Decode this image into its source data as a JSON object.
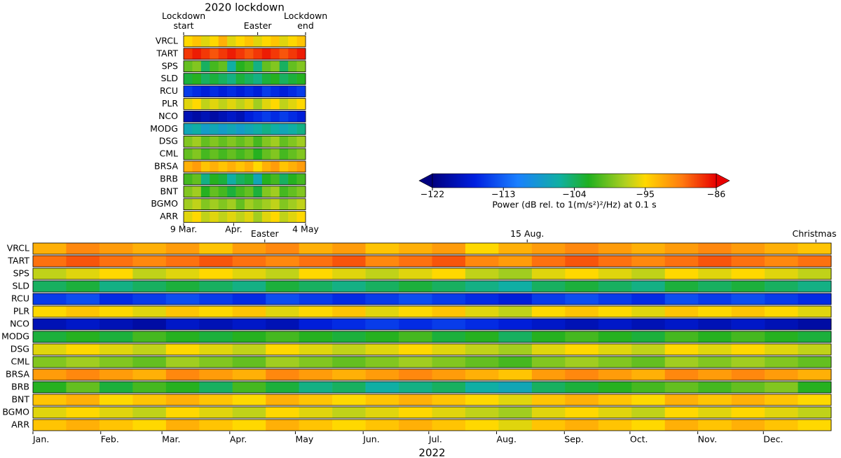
{
  "chart_data": [
    {
      "type": "heatmap",
      "title": "2020 lockdown",
      "rows": [
        "VRCL",
        "TART",
        "SPS",
        "SLD",
        "RCU",
        "PLR",
        "NCO",
        "MODG",
        "DSG",
        "CML",
        "BRSA",
        "BRB",
        "BNT",
        "BGMO",
        "ARR"
      ],
      "values": [
        [
          -95,
          -94,
          -96,
          -95,
          -93,
          -96,
          -95,
          -94,
          -96,
          -95,
          -94,
          -96,
          -95,
          -94
        ],
        [
          -88,
          -87,
          -88,
          -89,
          -88,
          -87,
          -88,
          -89,
          -88,
          -87,
          -88,
          -89,
          -88,
          -87
        ],
        [
          -100,
          -99,
          -104,
          -101,
          -100,
          -106,
          -102,
          -101,
          -105,
          -100,
          -99,
          -104,
          -100,
          -99
        ],
        [
          -103,
          -102,
          -104,
          -103,
          -104,
          -105,
          -103,
          -104,
          -105,
          -103,
          -102,
          -104,
          -103,
          -102
        ],
        [
          -115,
          -116,
          -117,
          -116,
          -117,
          -116,
          -117,
          -116,
          -117,
          -115,
          -116,
          -117,
          -116,
          -115
        ],
        [
          -96,
          -95,
          -97,
          -96,
          -97,
          -96,
          -97,
          -96,
          -98,
          -96,
          -95,
          -97,
          -96,
          -95
        ],
        [
          -119,
          -120,
          -119,
          -120,
          -119,
          -118,
          -119,
          -117,
          -116,
          -115,
          -116,
          -115,
          -116,
          -117
        ],
        [
          -107,
          -106,
          -108,
          -107,
          -108,
          -107,
          -108,
          -107,
          -106,
          -105,
          -106,
          -107,
          -106,
          -105
        ],
        [
          -99,
          -98,
          -100,
          -99,
          -100,
          -99,
          -100,
          -99,
          -101,
          -99,
          -98,
          -100,
          -99,
          -98
        ],
        [
          -100,
          -99,
          -101,
          -100,
          -101,
          -100,
          -101,
          -100,
          -102,
          -100,
          -99,
          -101,
          -100,
          -99
        ],
        [
          -93,
          -92,
          -94,
          -93,
          -94,
          -93,
          -94,
          -93,
          -95,
          -93,
          -92,
          -94,
          -93,
          -92
        ],
        [
          -101,
          -100,
          -105,
          -102,
          -103,
          -106,
          -104,
          -103,
          -107,
          -102,
          -101,
          -104,
          -102,
          -101
        ],
        [
          -99,
          -98,
          -102,
          -100,
          -101,
          -103,
          -101,
          -100,
          -103,
          -99,
          -98,
          -101,
          -100,
          -99
        ],
        [
          -98,
          -97,
          -99,
          -98,
          -99,
          -98,
          -100,
          -98,
          -99,
          -98,
          -97,
          -99,
          -98,
          -97
        ],
        [
          -96,
          -95,
          -97,
          -96,
          -97,
          -96,
          -97,
          -96,
          -98,
          -96,
          -95,
          -97,
          -96,
          -95
        ]
      ],
      "xlim": [
        69,
        125
      ],
      "xticks": [
        {
          "value": 69,
          "label": "9 Mar."
        },
        {
          "value": 92,
          "label": "Apr."
        },
        {
          "value": 125,
          "label": "4 May"
        }
      ],
      "annotations": [
        {
          "x": 69,
          "label": "Lockdown start"
        },
        {
          "x": 103,
          "label": "Easter"
        },
        {
          "x": 125,
          "label": "Lockdown end"
        }
      ],
      "colormap": "jet"
    },
    {
      "type": "heatmap",
      "xlabel": "2022",
      "rows": [
        "VRCL",
        "TART",
        "SPS",
        "SLD",
        "RCU",
        "PLR",
        "NCO",
        "MODG",
        "DSG",
        "CML",
        "BRSA",
        "BRB",
        "BNT",
        "BGMO",
        "ARR"
      ],
      "values": [
        [
          -93,
          -91,
          -92,
          -93,
          -92,
          -94,
          -92,
          -91,
          -93,
          -92,
          -94,
          -93,
          -92,
          -95,
          -93,
          -92,
          -91,
          -92,
          -93,
          -92,
          -91,
          -92,
          -93,
          -94
        ],
        [
          -90,
          -89,
          -90,
          -91,
          -90,
          -89,
          -90,
          -91,
          -90,
          -89,
          -91,
          -90,
          -89,
          -91,
          -92,
          -90,
          -89,
          -90,
          -91,
          -90,
          -89,
          -90,
          -91,
          -90
        ],
        [
          -97,
          -96,
          -95,
          -97,
          -96,
          -95,
          -96,
          -97,
          -95,
          -96,
          -97,
          -96,
          -95,
          -97,
          -98,
          -96,
          -95,
          -96,
          -97,
          -95,
          -96,
          -95,
          -96,
          -97
        ],
        [
          -104,
          -103,
          -105,
          -104,
          -103,
          -104,
          -105,
          -103,
          -104,
          -105,
          -104,
          -103,
          -104,
          -105,
          -106,
          -104,
          -103,
          -104,
          -105,
          -103,
          -104,
          -103,
          -104,
          -105
        ],
        [
          -115,
          -114,
          -116,
          -115,
          -114,
          -115,
          -116,
          -114,
          -115,
          -116,
          -115,
          -114,
          -115,
          -116,
          -117,
          -115,
          -114,
          -115,
          -116,
          -114,
          -115,
          -114,
          -115,
          -116
        ],
        [
          -95,
          -94,
          -95,
          -96,
          -94,
          -95,
          -94,
          -96,
          -95,
          -94,
          -96,
          -95,
          -94,
          -96,
          -97,
          -95,
          -94,
          -95,
          -96,
          -94,
          -95,
          -94,
          -95,
          -96
        ],
        [
          -119,
          -118,
          -119,
          -120,
          -118,
          -119,
          -118,
          -119,
          -117,
          -116,
          -115,
          -116,
          -115,
          -116,
          -117,
          -118,
          -119,
          -118,
          -119,
          -118,
          -119,
          -118,
          -119,
          -120
        ],
        [
          -103,
          -102,
          -103,
          -101,
          -102,
          -103,
          -102,
          -101,
          -102,
          -103,
          -102,
          -101,
          -103,
          -102,
          -104,
          -102,
          -101,
          -102,
          -103,
          -101,
          -102,
          -101,
          -102,
          -103
        ],
        [
          -96,
          -95,
          -96,
          -97,
          -95,
          -96,
          -97,
          -95,
          -96,
          -97,
          -96,
          -95,
          -96,
          -97,
          -98,
          -96,
          -95,
          -96,
          -97,
          -95,
          -96,
          -95,
          -96,
          -97
        ],
        [
          -99,
          -98,
          -99,
          -100,
          -98,
          -99,
          -100,
          -98,
          -99,
          -100,
          -99,
          -98,
          -99,
          -100,
          -101,
          -99,
          -98,
          -99,
          -100,
          -98,
          -99,
          -98,
          -99,
          -100
        ],
        [
          -92,
          -91,
          -92,
          -93,
          -91,
          -92,
          -93,
          -91,
          -92,
          -93,
          -92,
          -91,
          -92,
          -93,
          -94,
          -92,
          -91,
          -92,
          -93,
          -91,
          -92,
          -91,
          -92,
          -93
        ],
        [
          -102,
          -100,
          -103,
          -101,
          -102,
          -104,
          -101,
          -103,
          -105,
          -104,
          -106,
          -105,
          -104,
          -106,
          -107,
          -104,
          -103,
          -102,
          -101,
          -100,
          -101,
          -100,
          -99,
          -102
        ],
        [
          -94,
          -93,
          -95,
          -94,
          -93,
          -94,
          -95,
          -93,
          -94,
          -95,
          -94,
          -93,
          -94,
          -95,
          -96,
          -94,
          -93,
          -94,
          -95,
          -93,
          -94,
          -93,
          -94,
          -95
        ],
        [
          -96,
          -95,
          -96,
          -97,
          -95,
          -96,
          -97,
          -95,
          -96,
          -97,
          -96,
          -95,
          -96,
          -97,
          -98,
          -96,
          -95,
          -96,
          -97,
          -95,
          -96,
          -95,
          -96,
          -97
        ],
        [
          -94,
          -93,
          -94,
          -95,
          -93,
          -94,
          -95,
          -93,
          -94,
          -95,
          -94,
          -93,
          -94,
          -95,
          -96,
          -94,
          -93,
          -94,
          -95,
          -93,
          -94,
          -93,
          -94,
          -95
        ]
      ],
      "xlim": [
        1,
        366
      ],
      "xticks": [
        {
          "value": 1,
          "label": "Jan."
        },
        {
          "value": 32,
          "label": "Feb."
        },
        {
          "value": 60,
          "label": "Mar."
        },
        {
          "value": 91,
          "label": "Apr."
        },
        {
          "value": 121,
          "label": "May"
        },
        {
          "value": 152,
          "label": "Jun."
        },
        {
          "value": 182,
          "label": "Jul."
        },
        {
          "value": 213,
          "label": "Aug."
        },
        {
          "value": 244,
          "label": "Sep."
        },
        {
          "value": 274,
          "label": "Oct."
        },
        {
          "value": 305,
          "label": "Nov."
        },
        {
          "value": 335,
          "label": "Dec."
        }
      ],
      "annotations": [
        {
          "x": 107,
          "label": "Easter"
        },
        {
          "x": 227,
          "label": "15 Aug."
        },
        {
          "x": 359,
          "label": "Christmas"
        }
      ],
      "colormap": "jet",
      "colorbar": {
        "label": "Power (dB rel. to 1(m/s²)²/Hz) at 0.1 s",
        "lim": [
          -122,
          -86
        ],
        "ticks": [
          {
            "value": -122,
            "label": "−122"
          },
          {
            "value": -113,
            "label": "−113"
          },
          {
            "value": -104,
            "label": "−104"
          },
          {
            "value": -95,
            "label": "−95"
          },
          {
            "value": -86,
            "label": "−86"
          }
        ]
      }
    }
  ]
}
